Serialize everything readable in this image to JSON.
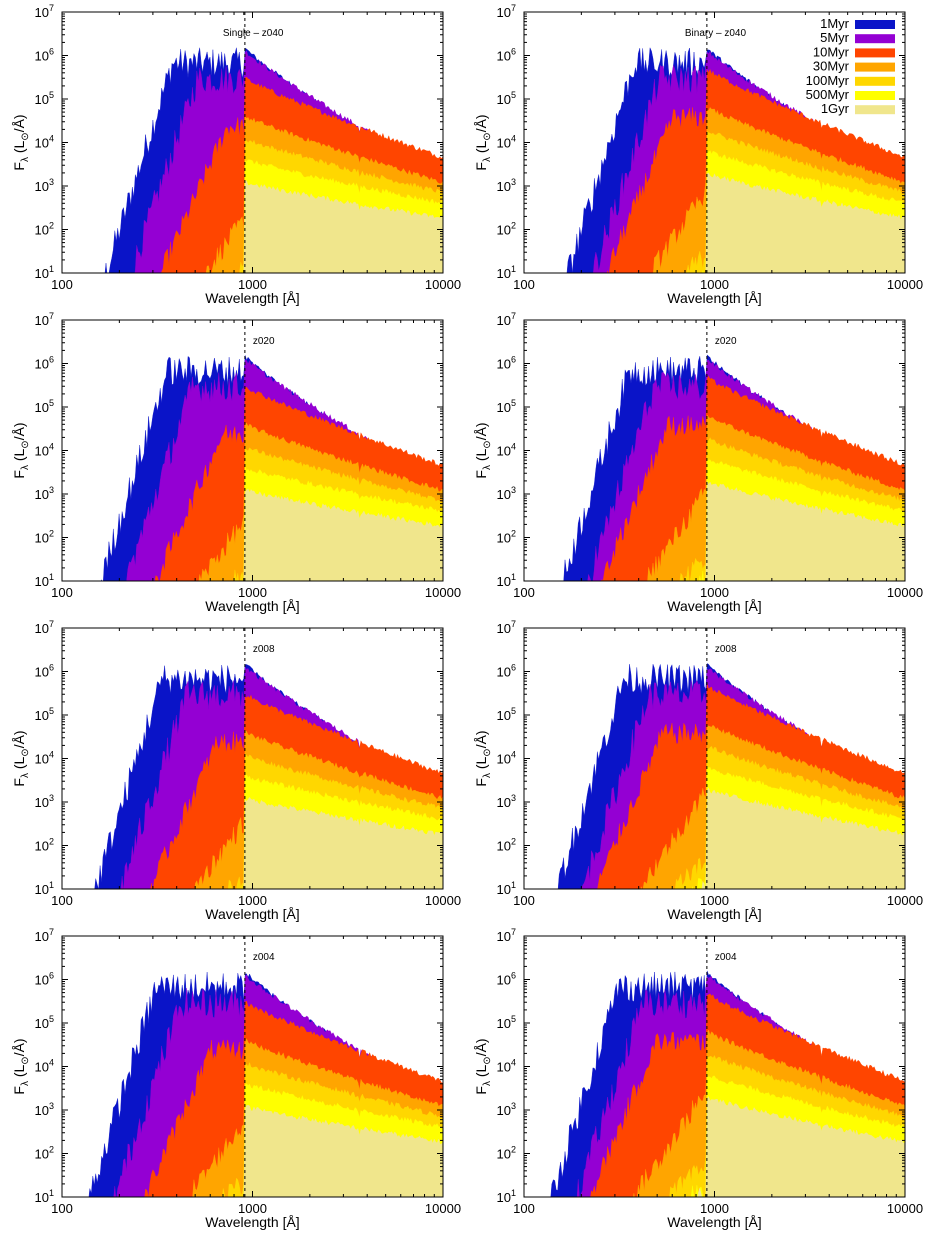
{
  "figure": {
    "xlabel": "Wavelength [Å]",
    "ylabel_main": "F",
    "ylabel_sub": "λ",
    "ylabel_unit": "(L",
    "ylabel_unit_sub": "⊙",
    "ylabel_unit_end": "/Å)",
    "x_ticks": [
      {
        "value": 100,
        "label": "100"
      },
      {
        "value": 1000,
        "label": "1000"
      },
      {
        "value": 10000,
        "label": "10000"
      }
    ],
    "y_ticks": [
      {
        "value": 10,
        "base": "10",
        "exp": "1"
      },
      {
        "value": 100,
        "base": "10",
        "exp": "2"
      },
      {
        "value": 1000,
        "base": "10",
        "exp": "3"
      },
      {
        "value": 10000,
        "base": "10",
        "exp": "4"
      },
      {
        "value": 100000,
        "base": "10",
        "exp": "5"
      },
      {
        "value": 1000000,
        "base": "10",
        "exp": "6"
      },
      {
        "value": 10000000,
        "base": "10",
        "exp": "7"
      }
    ],
    "lyman_limit_line": 912,
    "legend": [
      {
        "label": "1Myr",
        "color": "#0a14c8"
      },
      {
        "label": "5Myr",
        "color": "#9400d3"
      },
      {
        "label": "10Myr",
        "color": "#ff4500"
      },
      {
        "label": "30Myr",
        "color": "#ffa500"
      },
      {
        "label": "100Myr",
        "color": "#ffd700"
      },
      {
        "label": "500Myr",
        "color": "#ffff00"
      },
      {
        "label": "1Gyr",
        "color": "#f0e68c"
      }
    ]
  },
  "chart_data": [
    {
      "type": "area",
      "panel": "single-z040",
      "annotation": "Single – z040",
      "xlim": [
        100,
        10000
      ],
      "ylim": [
        10,
        10000000
      ],
      "xscale": "log",
      "yscale": "log"
    },
    {
      "type": "area",
      "panel": "binary-z040",
      "annotation": "Binary – z040",
      "xlim": [
        100,
        10000
      ],
      "ylim": [
        10,
        10000000
      ],
      "xscale": "log",
      "yscale": "log"
    },
    {
      "type": "area",
      "panel": "single-z020",
      "annotation": "z020",
      "xlim": [
        100,
        10000
      ],
      "ylim": [
        10,
        10000000
      ],
      "xscale": "log",
      "yscale": "log"
    },
    {
      "type": "area",
      "panel": "binary-z020",
      "annotation": "z020",
      "xlim": [
        100,
        10000
      ],
      "ylim": [
        10,
        10000000
      ],
      "xscale": "log",
      "yscale": "log"
    },
    {
      "type": "area",
      "panel": "single-z008",
      "annotation": "z008",
      "xlim": [
        100,
        10000
      ],
      "ylim": [
        10,
        10000000
      ],
      "xscale": "log",
      "yscale": "log"
    },
    {
      "type": "area",
      "panel": "binary-z008",
      "annotation": "z008",
      "xlim": [
        100,
        10000
      ],
      "ylim": [
        10,
        10000000
      ],
      "xscale": "log",
      "yscale": "log"
    },
    {
      "type": "area",
      "panel": "single-z004",
      "annotation": "z004",
      "xlim": [
        100,
        10000
      ],
      "ylim": [
        10,
        10000000
      ],
      "xscale": "log",
      "yscale": "log"
    },
    {
      "type": "area",
      "panel": "binary-z004",
      "annotation": "z004",
      "xlim": [
        100,
        10000
      ],
      "ylim": [
        10,
        10000000
      ],
      "xscale": "log",
      "yscale": "log"
    }
  ],
  "series_shape": {
    "peak_flux": [
      1500000,
      1300000,
      300000,
      40000,
      12000,
      4000,
      1200
    ],
    "cutoff_wavelength": [
      170,
      230,
      330,
      560,
      850,
      1050,
      1200
    ],
    "tail_flux_10000": [
      1200,
      1800,
      4500,
      1200,
      700,
      400,
      180
    ]
  }
}
